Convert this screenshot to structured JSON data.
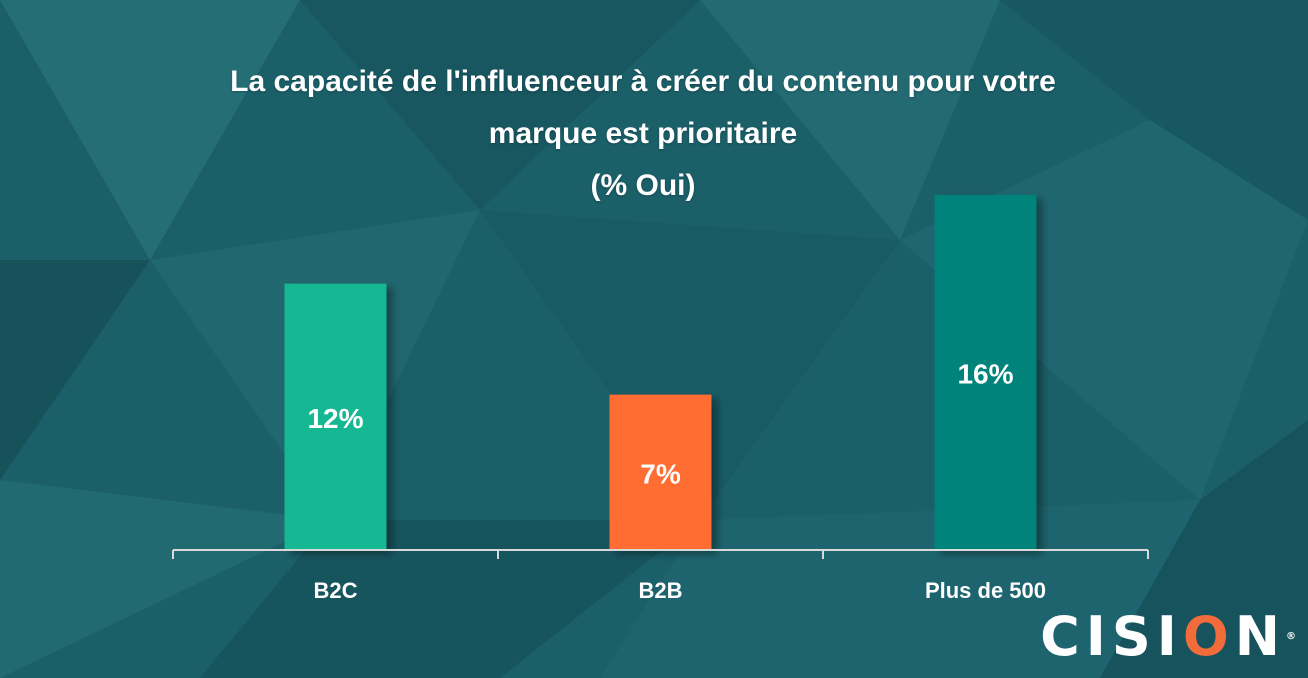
{
  "chart_data": {
    "type": "bar",
    "title_lines": [
      "La capacité de l'influenceur à créer du contenu pour votre",
      "marque est prioritaire",
      "(% Oui)"
    ],
    "categories": [
      "B2C",
      "B2B",
      "Plus de 500"
    ],
    "values": [
      12,
      7,
      16
    ],
    "data_labels": [
      "12%",
      "7%",
      "16%"
    ],
    "bar_colors": [
      "#15b894",
      "#ff6d33",
      "#00837a"
    ],
    "unit": "%",
    "xlabel": "",
    "ylabel": "",
    "grid": false,
    "legend": "none"
  },
  "logo": {
    "prefix": "CISI",
    "accent": "O",
    "suffix": "N",
    "mark": "®",
    "accent_color": "#f26b3a"
  }
}
